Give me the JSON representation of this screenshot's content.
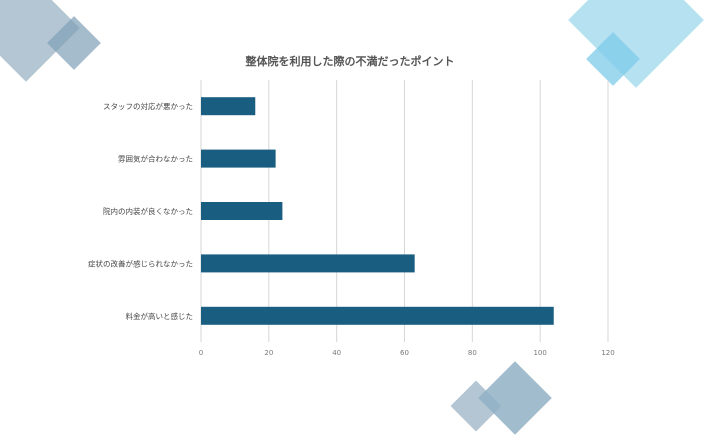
{
  "colors": {
    "bar": "#195e80",
    "grid": "#d6d6d6",
    "text": "#444444",
    "tick": "#777777",
    "deco_gray_blue": "#9fb7c8",
    "deco_light_blue": "#a9dcef",
    "deco_sky": "#7ecbe8",
    "deco_slate": "#6f98b3"
  },
  "chart_data": {
    "type": "bar",
    "orientation": "horizontal",
    "title": "整体院を利用した際の不満だったポイント",
    "categories": [
      "スタッフの対応が悪かった",
      "雰囲気が合わなかった",
      "院内の内装が良くなかった",
      "症状の改善が感じられなかった",
      "料金が高いと感じた"
    ],
    "values": [
      16,
      22,
      24,
      63,
      104
    ],
    "xlim": [
      0,
      120
    ],
    "xticks": [
      "0",
      "20",
      "40",
      "60",
      "80",
      "100",
      "120"
    ],
    "grid": true,
    "legend": "none"
  }
}
